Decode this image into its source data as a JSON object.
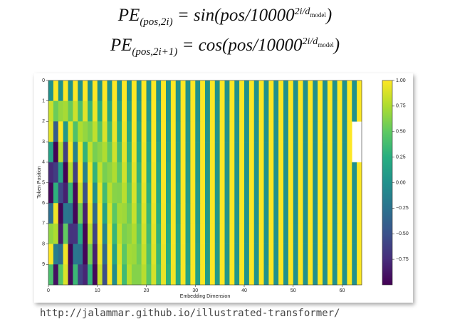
{
  "formulas": [
    {
      "lhs": "PE",
      "sub": "(pos,2i)",
      "rhs": "= sin(pos/10000",
      "exp": "2i/d",
      "exp_sub": "model",
      "close": ")"
    },
    {
      "lhs": "PE",
      "sub": "(pos,2i+1)",
      "rhs": "= cos(pos/10000",
      "exp": "2i/d",
      "exp_sub": "model",
      "close": ")"
    }
  ],
  "chart_data": {
    "type": "heatmap",
    "colormap": "viridis",
    "xlabel": "Embedding Dimension",
    "ylabel": "Token Position",
    "xlim": [
      0,
      64
    ],
    "xticks": [
      0,
      10,
      20,
      30,
      40,
      50,
      60
    ],
    "ylim": [
      0,
      10
    ],
    "yticks": [
      0,
      1,
      2,
      3,
      4,
      5,
      6,
      7,
      8,
      9
    ],
    "clim": [
      -1,
      1
    ],
    "cticks": [
      {
        "value": -0.75,
        "label": "−0.75"
      },
      {
        "value": -0.5,
        "label": "−0.50"
      },
      {
        "value": -0.25,
        "label": "−0.25"
      },
      {
        "value": 0,
        "label": "0.00"
      },
      {
        "value": 0.25,
        "label": "0.25"
      },
      {
        "value": 0.5,
        "label": "0.50"
      },
      {
        "value": 0.75,
        "label": "0.75"
      },
      {
        "value": 1,
        "label": "1.00"
      }
    ],
    "z": [
      [
        0,
        1,
        0,
        1,
        0,
        1,
        0,
        1,
        0,
        1,
        0,
        1,
        0,
        1,
        0,
        1,
        0,
        1,
        0,
        1,
        0,
        1,
        0,
        1,
        0,
        1,
        0,
        1,
        0,
        1,
        0,
        1,
        0,
        1,
        0,
        1,
        0,
        1,
        0,
        1,
        0,
        1,
        0,
        1,
        0,
        1,
        0,
        1,
        0,
        1,
        0,
        1,
        0,
        1,
        0,
        1,
        0,
        1,
        0,
        1,
        0,
        1,
        0,
        1
      ],
      [
        0.84,
        0.54,
        0.68,
        0.73,
        0.53,
        0.85,
        0.41,
        0.91,
        0.31,
        0.95,
        0.24,
        0.97,
        0.18,
        0.98,
        0.13,
        0.99,
        0.1,
        1,
        0.07,
        1,
        0.06,
        1,
        0.04,
        1,
        0.03,
        1,
        0.02,
        1,
        0.02,
        1,
        0.01,
        1,
        0.01,
        1,
        0.01,
        1,
        0.01,
        1,
        0,
        1,
        0,
        1,
        0,
        1,
        0,
        1,
        0,
        1,
        0,
        1,
        0,
        1,
        0,
        1,
        0,
        1,
        0,
        1,
        0,
        1,
        0,
        1,
        0,
        1
      ],
      [
        0.91,
        -0.42,
        1,
        0.07,
        0.9,
        0.43,
        0.75,
        0.67,
        0.59,
        0.81,
        0.46,
        0.89,
        0.35,
        0.94,
        0.26,
        0.96,
        0.2,
        0.98,
        0.15,
        0.99,
        0.11,
        0.99,
        0.08,
        1,
        0.06,
        1,
        0.05,
        1,
        0.04,
        1,
        0.03,
        1,
        0.02,
        1,
        0.02,
        1,
        0.01,
        1,
        0.01,
        1,
        0.01,
        1,
        0,
        1,
        0,
        1,
        0,
        1,
        0,
        1,
        0,
        1,
        0,
        1,
        0,
        1,
        0,
        1,
        0,
        1,
        0,
        1
      ],
      [
        0.14,
        -0.99,
        0.78,
        -0.63,
        0.99,
        -0.12,
        0.95,
        0.3,
        0.81,
        0.58,
        0.65,
        0.76,
        0.51,
        0.86,
        0.39,
        0.92,
        0.3,
        0.96,
        0.22,
        0.97,
        0.17,
        0.99,
        0.13,
        0.99,
        0.09,
        1,
        0.07,
        1,
        0.05,
        1,
        0.04,
        1,
        0.03,
        1,
        0.02,
        1,
        0.02,
        1,
        0.01,
        1,
        0.01,
        1,
        0.01,
        1,
        0.01,
        1,
        0,
        1,
        0,
        1,
        0,
        1,
        0,
        1,
        0,
        1,
        0,
        1,
        0,
        1,
        0,
        1
      ],
      [
        -0.76,
        -0.65,
        0.14,
        -0.99,
        0.78,
        -0.63,
        0.99,
        -0.12,
        0.95,
        0.3,
        0.81,
        0.58,
        0.65,
        0.76,
        0.51,
        0.86,
        0.39,
        0.92,
        0.3,
        0.96,
        0.22,
        0.97,
        0.17,
        0.99,
        0.13,
        0.99,
        0.09,
        1,
        0.07,
        1,
        0.05,
        1,
        0.04,
        1,
        0.03,
        1,
        0.02,
        1,
        0.02,
        1,
        0.01,
        1,
        0.01,
        1,
        0.01,
        1,
        0.01,
        1,
        0,
        1,
        0,
        1,
        0,
        1,
        0,
        1,
        0,
        1,
        0,
        1,
        0,
        1,
        0,
        1
      ],
      [
        -0.96,
        0.28,
        -0.57,
        -0.82,
        0.32,
        -0.95,
        0.86,
        -0.51,
        1,
        -0.01,
        0.93,
        0.37,
        0.78,
        0.63,
        0.62,
        0.79,
        0.48,
        0.88,
        0.37,
        0.93,
        0.28,
        0.96,
        0.21,
        0.98,
        0.16,
        0.99,
        0.12,
        0.99,
        0.09,
        1,
        0.07,
        1,
        0.05,
        1,
        0.04,
        1,
        0.03,
        1,
        0.02,
        1,
        0.02,
        1,
        0.01,
        1,
        0.01,
        1,
        0.01,
        1,
        0.01,
        1,
        0,
        1,
        0,
        1,
        0,
        1,
        0,
        1,
        0,
        1,
        0,
        1,
        0,
        1
      ],
      [
        -0.28,
        0.96,
        -0.98,
        -0.21,
        -0.23,
        -0.97,
        0.57,
        -0.82,
        0.95,
        -0.32,
        0.99,
        0.15,
        0.88,
        0.48,
        0.72,
        0.7,
        0.56,
        0.83,
        0.43,
        0.9,
        0.33,
        0.94,
        0.25,
        0.97,
        0.19,
        0.98,
        0.14,
        0.99,
        0.11,
        0.99,
        0.08,
        1,
        0.06,
        1,
        0.05,
        1,
        0.03,
        1,
        0.03,
        1,
        0.02,
        1,
        0.01,
        1,
        0.01,
        1,
        0.01,
        1,
        0.01,
        1,
        0,
        1,
        0,
        1,
        0,
        1,
        0,
        1,
        0,
        1,
        0,
        1,
        0,
        1
      ],
      [
        0.66,
        0.75,
        -0.86,
        0.51,
        -0.71,
        -0.7,
        0.19,
        -0.98,
        0.8,
        -0.6,
        1,
        -0.09,
        0.95,
        0.32,
        0.8,
        0.59,
        0.64,
        0.76,
        0.5,
        0.87,
        0.38,
        0.92,
        0.29,
        0.96,
        0.22,
        0.98,
        0.17,
        0.99,
        0.12,
        0.99,
        0.09,
        1,
        0.07,
        1,
        0.05,
        1,
        0.04,
        1,
        0.03,
        1,
        0.02,
        1,
        0.02,
        1,
        0.01,
        1,
        0.01,
        1,
        0.01,
        1,
        0.01,
        1,
        0,
        1,
        0,
        1,
        0,
        1,
        0,
        1,
        0,
        1,
        0,
        1
      ],
      [
        0.99,
        -0.15,
        -0.28,
        0.96,
        -0.98,
        -0.21,
        -0.23,
        -0.97,
        0.57,
        -0.82,
        0.95,
        -0.32,
        0.99,
        0.15,
        0.88,
        0.48,
        0.72,
        0.7,
        0.56,
        0.83,
        0.43,
        0.9,
        0.33,
        0.94,
        0.25,
        0.97,
        0.19,
        0.98,
        0.14,
        0.99,
        0.11,
        0.99,
        0.08,
        1,
        0.06,
        1,
        0.04,
        1,
        0.03,
        1,
        0.03,
        1,
        0.02,
        1,
        0.01,
        1,
        0.01,
        1,
        0.01,
        1,
        0.01,
        1,
        0,
        1,
        0,
        1,
        0,
        1,
        0,
        1,
        0,
        1,
        0,
        1
      ],
      [
        0.41,
        -0.91,
        0.45,
        0.89,
        -0.94,
        0.34,
        -0.61,
        -0.79,
        0.29,
        -0.96,
        0.84,
        -0.53,
        1,
        -0.03,
        0.93,
        0.36,
        0.78,
        0.62,
        0.62,
        0.78,
        0.48,
        0.87,
        0.37,
        0.93,
        0.28,
        0.96,
        0.21,
        0.98,
        0.16,
        0.99,
        0.12,
        0.99,
        0.09,
        1,
        0.07,
        1,
        0.05,
        1,
        0.04,
        1,
        0.03,
        1,
        0.02,
        1,
        0.02,
        1,
        0.01,
        1,
        0.01,
        1,
        0.01,
        1,
        0.01,
        1,
        0,
        1,
        0,
        1,
        0,
        1,
        0,
        1,
        0,
        1
      ]
    ]
  }
}
